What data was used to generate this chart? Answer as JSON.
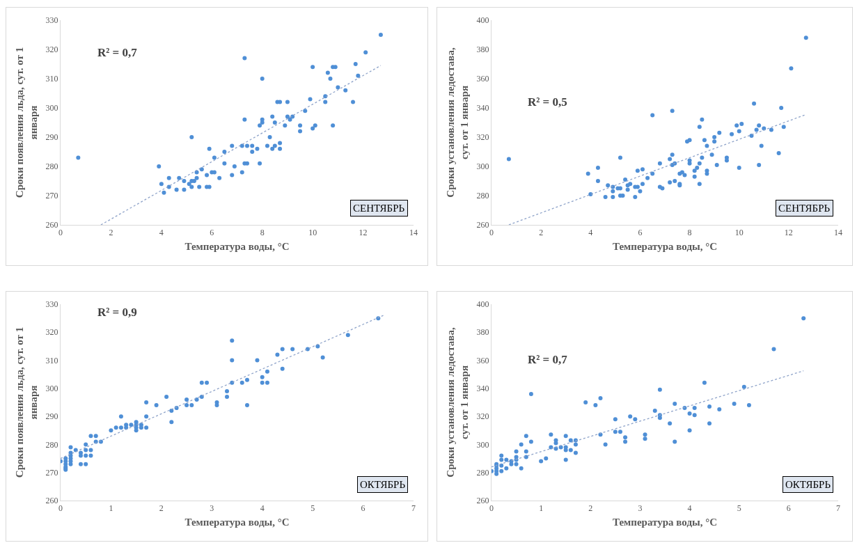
{
  "chart_data": [
    {
      "type": "scatter",
      "xlabel": "Температура воды, °C",
      "ylabel": "Сроки появления льда, сут. от 1 января",
      "xlim": [
        0,
        14
      ],
      "xticks": [
        0,
        2,
        4,
        6,
        8,
        10,
        12,
        14
      ],
      "ylim": [
        260,
        330
      ],
      "yticks": [
        260,
        270,
        280,
        290,
        300,
        310,
        320,
        330
      ],
      "marker": "circle",
      "annotations": [
        "R² = 0,7",
        "СЕНТЯБРЬ"
      ],
      "series": [
        {
          "color": "#4f8fd6",
          "x": [
            0.7,
            3.9,
            4.0,
            4.1,
            4.3,
            4.3,
            4.6,
            4.7,
            4.9,
            4.9,
            5.1,
            5.2,
            5.3,
            5.2,
            5.4,
            5.2,
            5.5,
            5.6,
            5.4,
            5.8,
            5.8,
            5.9,
            5.9,
            6.0,
            6.1,
            6.1,
            6.3,
            6.5,
            6.5,
            6.8,
            6.8,
            6.9,
            7.2,
            7.2,
            7.3,
            7.3,
            7.3,
            7.4,
            7.4,
            7.6,
            7.6,
            7.8,
            7.9,
            7.9,
            8.0,
            8.0,
            8.0,
            8.2,
            8.3,
            8.4,
            8.4,
            8.5,
            8.5,
            8.6,
            8.7,
            8.7,
            8.7,
            8.9,
            9.0,
            9.0,
            9.1,
            9.2,
            9.5,
            9.5,
            9.7,
            9.9,
            10.0,
            10.0,
            10.1,
            10.5,
            10.5,
            10.6,
            10.7,
            10.8,
            10.9,
            10.8,
            11.0,
            11.3,
            11.6,
            11.7,
            11.8,
            12.1,
            12.7
          ],
          "values": [
            283,
            280,
            274,
            271,
            276,
            273,
            272,
            276,
            275,
            272,
            274,
            275,
            275,
            273,
            276,
            290,
            273,
            279,
            278,
            277,
            273,
            273,
            286,
            278,
            278,
            283,
            276,
            281,
            285,
            287,
            277,
            280,
            287,
            278,
            317,
            296,
            281,
            281,
            287,
            285,
            287,
            286,
            281,
            294,
            310,
            296,
            295,
            287,
            290,
            286,
            297,
            287,
            295,
            302,
            302,
            286,
            288,
            294,
            302,
            297,
            296,
            297,
            294,
            292,
            299,
            303,
            314,
            293,
            294,
            304,
            302,
            312,
            310,
            314,
            314,
            294,
            307,
            306,
            302,
            315,
            311,
            319,
            325
          ]
        },
        {
          "type": "line",
          "marker": "none",
          "color": "#8ea3c9",
          "line_style": "dotted",
          "x": [
            1.6,
            12.7
          ],
          "values": [
            260,
            314.5
          ]
        }
      ]
    },
    {
      "type": "scatter",
      "xlabel": "Температура воды, °C",
      "ylabel": "Сроки установления ледостава, сут. от 1 января",
      "xlim": [
        0,
        14
      ],
      "xticks": [
        0,
        2,
        4,
        6,
        8,
        10,
        12,
        14
      ],
      "ylim": [
        260,
        400
      ],
      "yticks": [
        260,
        280,
        300,
        320,
        340,
        360,
        380,
        400
      ],
      "marker": "circle",
      "annotations": [
        "R² = 0,5",
        "СЕНТЯБРЬ"
      ],
      "series": [
        {
          "color": "#4f8fd6",
          "x": [
            0.7,
            3.9,
            4.0,
            4.3,
            4.3,
            4.6,
            4.7,
            4.9,
            4.9,
            4.9,
            5.1,
            5.2,
            5.2,
            5.2,
            5.3,
            5.4,
            5.5,
            5.5,
            5.6,
            5.8,
            5.8,
            5.9,
            5.9,
            6.0,
            6.1,
            6.1,
            6.3,
            6.5,
            6.5,
            6.8,
            6.9,
            6.8,
            7.2,
            7.2,
            7.3,
            7.3,
            7.3,
            7.4,
            7.4,
            7.6,
            7.6,
            7.6,
            7.7,
            7.8,
            7.9,
            8.0,
            8.0,
            8.0,
            8.2,
            8.2,
            8.3,
            8.4,
            8.4,
            8.4,
            8.5,
            8.5,
            8.6,
            8.7,
            8.7,
            8.7,
            8.9,
            9.0,
            9.0,
            9.1,
            9.2,
            9.5,
            9.5,
            9.7,
            9.9,
            10.0,
            10.0,
            10.1,
            10.5,
            10.6,
            10.7,
            10.8,
            10.8,
            10.9,
            11.0,
            11.3,
            11.6,
            11.7,
            11.8,
            12.1,
            12.7
          ],
          "values": [
            305,
            295,
            281,
            299,
            290,
            279,
            287,
            286,
            283,
            279,
            285,
            285,
            306,
            280,
            280,
            291,
            284,
            287,
            288,
            279,
            286,
            286,
            297,
            283,
            298,
            288,
            292,
            335,
            295,
            286,
            285,
            302,
            305,
            289,
            338,
            308,
            301,
            302,
            290,
            288,
            287,
            295,
            296,
            294,
            317,
            318,
            304,
            302,
            293,
            297,
            299,
            302,
            288,
            327,
            332,
            306,
            318,
            314,
            297,
            295,
            308,
            320,
            317,
            301,
            323,
            306,
            304,
            322,
            328,
            324,
            299,
            329,
            321,
            343,
            325,
            328,
            301,
            314,
            326,
            325,
            309,
            340,
            327,
            367,
            388
          ]
        },
        {
          "type": "line",
          "marker": "none",
          "color": "#8ea3c9",
          "line_style": "dotted",
          "x": [
            0.7,
            12.7
          ],
          "values": [
            260,
            335.5
          ]
        }
      ]
    },
    {
      "type": "scatter",
      "xlabel": "Температура воды, °C",
      "ylabel": "Сроки появления льда, сут. от 1 января",
      "xlim": [
        0,
        7
      ],
      "xticks": [
        0,
        1,
        2,
        3,
        4,
        5,
        6,
        7
      ],
      "ylim": [
        260,
        330
      ],
      "yticks": [
        260,
        270,
        280,
        290,
        300,
        310,
        320,
        330
      ],
      "marker": "circle",
      "annotations": [
        "R² = 0,9",
        "ОКТЯБРЬ"
      ],
      "series": [
        {
          "color": "#4f8fd6",
          "x": [
            0.0,
            0.1,
            0.1,
            0.1,
            0.1,
            0.1,
            0.1,
            0.2,
            0.2,
            0.2,
            0.2,
            0.2,
            0.2,
            0.3,
            0.4,
            0.4,
            0.4,
            0.5,
            0.5,
            0.5,
            0.5,
            0.6,
            0.6,
            0.6,
            0.7,
            0.7,
            0.8,
            1.0,
            1.1,
            1.2,
            1.2,
            1.3,
            1.3,
            1.4,
            1.5,
            1.5,
            1.5,
            1.5,
            1.6,
            1.6,
            1.7,
            1.7,
            1.7,
            1.9,
            2.1,
            2.2,
            2.2,
            2.3,
            2.5,
            2.5,
            2.6,
            2.7,
            2.8,
            2.8,
            2.9,
            3.1,
            3.1,
            3.3,
            3.3,
            3.4,
            3.4,
            3.4,
            3.6,
            3.7,
            3.7,
            3.9,
            4.0,
            4.0,
            4.1,
            4.1,
            4.3,
            4.4,
            4.4,
            4.6,
            4.9,
            5.1,
            5.2,
            5.7,
            6.3
          ],
          "values": [
            274,
            275,
            274,
            273,
            272,
            271.5,
            271,
            279,
            277,
            276,
            275,
            274,
            273,
            278,
            277,
            276,
            273,
            280,
            278,
            276,
            273,
            283,
            278,
            276,
            283,
            281,
            281,
            285,
            286,
            290,
            286,
            287,
            286,
            287,
            288,
            287,
            286,
            285,
            287,
            286,
            295,
            290,
            286,
            294,
            297,
            292,
            288,
            293,
            296,
            294,
            294,
            296,
            302,
            297,
            302,
            295,
            294,
            299,
            297,
            317,
            310,
            302,
            302,
            303,
            294,
            310,
            304,
            302,
            306,
            302,
            312,
            314,
            307,
            314,
            314,
            315,
            311,
            319,
            325
          ]
        },
        {
          "type": "line",
          "marker": "none",
          "color": "#8ea3c9",
          "line_style": "dotted",
          "x": [
            0.0,
            6.4
          ],
          "values": [
            275,
            326
          ]
        }
      ]
    },
    {
      "type": "scatter",
      "xlabel": "Температура воды, °C",
      "ylabel": "Сроки установления ледостава, сут. от 1 января",
      "xlim": [
        0,
        7
      ],
      "xticks": [
        0,
        1,
        2,
        3,
        4,
        5,
        6,
        7
      ],
      "ylim": [
        260,
        400
      ],
      "yticks": [
        260,
        280,
        300,
        320,
        340,
        360,
        380,
        400
      ],
      "marker": "circle",
      "annotations": [
        "R² = 0,7",
        "ОКТЯБРЬ"
      ],
      "series": [
        {
          "color": "#4f8fd6",
          "x": [
            0.0,
            0.1,
            0.1,
            0.1,
            0.1,
            0.1,
            0.2,
            0.2,
            0.2,
            0.2,
            0.3,
            0.3,
            0.4,
            0.4,
            0.5,
            0.5,
            0.5,
            0.5,
            0.6,
            0.6,
            0.7,
            0.7,
            0.7,
            0.8,
            0.8,
            1.0,
            1.1,
            1.2,
            1.2,
            1.3,
            1.3,
            1.3,
            1.4,
            1.5,
            1.5,
            1.5,
            1.5,
            1.6,
            1.6,
            1.7,
            1.7,
            1.7,
            1.9,
            2.1,
            2.2,
            2.2,
            2.3,
            2.5,
            2.5,
            2.6,
            2.7,
            2.7,
            2.8,
            2.9,
            3.1,
            3.1,
            3.3,
            3.4,
            3.4,
            3.4,
            3.6,
            3.7,
            3.7,
            3.9,
            4.0,
            4.0,
            4.1,
            4.1,
            4.3,
            4.4,
            4.4,
            4.6,
            4.9,
            5.1,
            5.2,
            5.7,
            6.3
          ],
          "values": [
            281,
            286,
            285,
            283,
            281,
            279,
            292,
            289,
            285,
            281,
            289,
            283,
            288,
            286,
            295,
            291,
            289,
            286,
            300,
            283,
            306,
            295,
            291,
            336,
            302,
            288,
            290,
            307,
            298,
            303,
            301,
            297,
            298,
            306,
            298,
            296,
            289,
            303,
            296,
            303,
            300,
            294,
            330,
            328,
            333,
            307,
            300,
            318,
            309,
            309,
            305,
            302,
            320,
            318,
            307,
            304,
            324,
            339,
            321,
            319,
            315,
            329,
            302,
            326,
            322,
            310,
            326,
            321,
            344,
            327,
            315,
            325,
            329,
            341,
            328,
            368,
            390
          ]
        },
        {
          "type": "line",
          "marker": "none",
          "color": "#8ea3c9",
          "line_style": "dotted",
          "x": [
            0.0,
            6.3
          ],
          "values": [
            284,
            352.5
          ]
        }
      ]
    }
  ]
}
